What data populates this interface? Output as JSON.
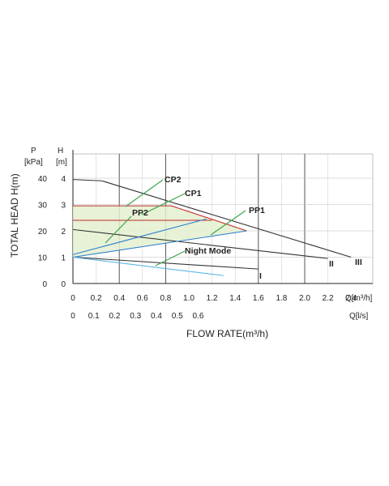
{
  "chart_data": {
    "type": "line",
    "xlabel": "FLOW RATE(m³/h)",
    "ylabel": "TOTAL HEAD H(m)",
    "x_unit_m3h": "Q[m³/h]",
    "x_unit_ls": "Q[l/s]",
    "y_unit_kpa": "[kPa]",
    "y_unit_m": "[m]",
    "y_symbol_p": "P",
    "y_symbol_h": "H",
    "xlim": [
      0,
      2.4
    ],
    "ylim": [
      0,
      4.3
    ],
    "x_ticks": [
      "0",
      "0.2",
      "0.4",
      "0.6",
      "0.8",
      "1.0",
      "1.2",
      "1.4",
      "1.6",
      "1.8",
      "2.0",
      "2.2",
      "2.4"
    ],
    "x_ticks_ls": [
      "0",
      "0.1",
      "0.2",
      "0.3",
      "0.4",
      "0.5",
      "0.6"
    ],
    "y_ticks_m": [
      "0",
      "1",
      "2",
      "3",
      "4"
    ],
    "y_ticks_kpa": [
      "0",
      "10",
      "20",
      "30",
      "40"
    ],
    "grid": true,
    "series": [
      {
        "name": "III",
        "color": "#333333",
        "points": [
          [
            0.0,
            3.95
          ],
          [
            0.25,
            3.9
          ],
          [
            2.4,
            1.0
          ]
        ]
      },
      {
        "name": "II",
        "color": "#333333",
        "points": [
          [
            0.0,
            2.05
          ],
          [
            2.2,
            0.95
          ]
        ]
      },
      {
        "name": "I",
        "color": "#333333",
        "points": [
          [
            0.0,
            1.0
          ],
          [
            1.6,
            0.55
          ]
        ]
      },
      {
        "name": "CP2",
        "color": "#c0282b",
        "points": [
          [
            0.0,
            2.95
          ],
          [
            0.85,
            2.95
          ],
          [
            1.5,
            2.0
          ]
        ]
      },
      {
        "name": "CP1",
        "color": "#c0282b",
        "points": [
          [
            0.0,
            2.4
          ],
          [
            1.2,
            2.4
          ]
        ]
      },
      {
        "name": "PP2",
        "color": "#2f7fd0",
        "points": [
          [
            0.0,
            1.1
          ],
          [
            1.15,
            2.45
          ]
        ]
      },
      {
        "name": "PP1",
        "color": "#2f7fd0",
        "points": [
          [
            0.0,
            1.0
          ],
          [
            1.5,
            2.0
          ]
        ]
      },
      {
        "name": "Night Mode",
        "color": "#5bb8e8",
        "points": [
          [
            0.0,
            1.0
          ],
          [
            1.3,
            0.3
          ]
        ]
      }
    ],
    "labels": {
      "cp2": "CP2",
      "cp1": "CP1",
      "pp2": "PP2",
      "pp1": "PP1",
      "night": "Night Mode",
      "i": "I",
      "ii": "II",
      "iii": "III"
    }
  }
}
